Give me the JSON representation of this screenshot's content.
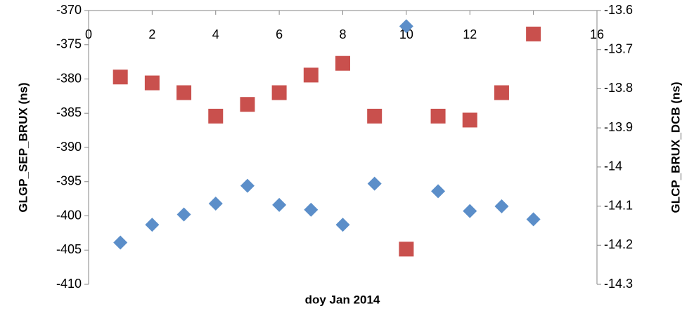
{
  "chart_data": {
    "type": "scatter",
    "xlabel": "doy Jan 2014",
    "ylabel": "GLGP_SEP_BRUX (ns)",
    "y2label": "GLCP_BRUX_DCB (ns)",
    "x": [
      1,
      2,
      3,
      4,
      5,
      6,
      7,
      8,
      9,
      10,
      11,
      12,
      13,
      14
    ],
    "series": [
      {
        "name": "GLGP_SEP_BRUX",
        "color": "#5b8ec9",
        "marker": "diamond",
        "axis": "y",
        "values": [
          -403.9,
          -401.3,
          -399.8,
          -398.2,
          -395.6,
          -398.4,
          -399.1,
          -401.3,
          -395.3,
          -372.3,
          -396.4,
          -399.3,
          -398.6,
          -400.5
        ]
      },
      {
        "name": "GLCP_BRUX_DCB",
        "color": "#c9504d",
        "marker": "square",
        "axis": "y2",
        "values": [
          -13.77,
          -13.785,
          -13.81,
          -13.87,
          -13.84,
          -13.81,
          -13.765,
          -13.735,
          -13.87,
          -14.21,
          -13.87,
          -13.88,
          -13.81,
          -13.66
        ]
      }
    ],
    "xlim": [
      0,
      16
    ],
    "xticks": [
      0,
      2,
      4,
      6,
      8,
      10,
      12,
      14,
      16
    ],
    "ylim": [
      -410,
      -370
    ],
    "yticks": [
      -370,
      -375,
      -380,
      -385,
      -390,
      -395,
      -400,
      -405,
      -410
    ],
    "y2lim": [
      -14.3,
      -13.6
    ],
    "y2ticks": [
      -13.6,
      -13.7,
      -13.8,
      -13.9,
      -14,
      -14.1,
      -14.2,
      -14.3
    ]
  }
}
